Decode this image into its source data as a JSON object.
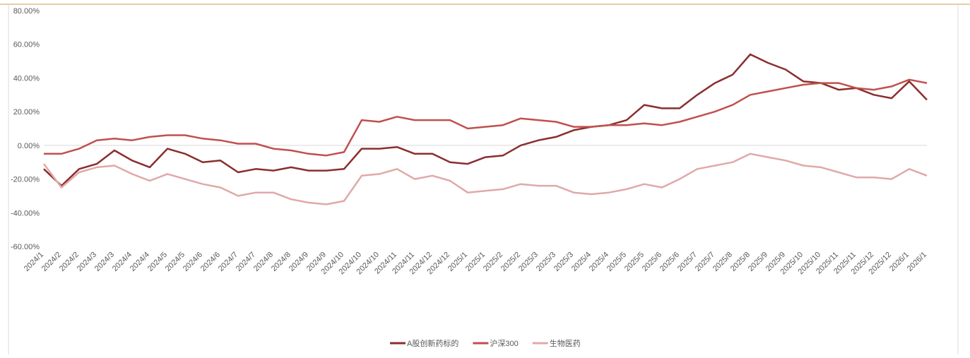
{
  "chart_data": {
    "type": "line",
    "categories": [
      "2024/1",
      "2024/2",
      "2024/2",
      "2024/3",
      "2024/3",
      "2024/4",
      "2024/4",
      "2024/5",
      "2024/5",
      "2024/6",
      "2024/6",
      "2024/7",
      "2024/7",
      "2024/8",
      "2024/8",
      "2024/9",
      "2024/9",
      "2024/10",
      "2024/10",
      "2024/10",
      "2024/11",
      "2024/11",
      "2024/12",
      "2024/12",
      "2025/1",
      "2025/1",
      "2025/2",
      "2025/2",
      "2025/3",
      "2025/3",
      "2025/3",
      "2025/4",
      "2025/4",
      "2025/5",
      "2025/5",
      "2025/6",
      "2025/6",
      "2025/7",
      "2025/7",
      "2025/8",
      "2025/8",
      "2025/9",
      "2025/9",
      "2025/10",
      "2025/10",
      "2025/11",
      "2025/11",
      "2025/12",
      "2025/12",
      "2026/1",
      "2026/1"
    ],
    "series": [
      {
        "name": "A股创新药标的",
        "color": "#8b2e2e",
        "values": [
          -14,
          -24,
          -14,
          -11,
          -3,
          -9,
          -13,
          -2,
          -5,
          -10,
          -9,
          -16,
          -14,
          -15,
          -13,
          -15,
          -15,
          -14,
          -2,
          -2,
          -1,
          -5,
          -5,
          -10,
          -11,
          -7,
          -6,
          0,
          3,
          5,
          9,
          11,
          12,
          15,
          24,
          22,
          22,
          30,
          37,
          42,
          54,
          49,
          45,
          38,
          37,
          33,
          34,
          30,
          28,
          38,
          27
        ]
      },
      {
        "name": "沪深300",
        "color": "#c0504d",
        "values": [
          -5,
          -5,
          -2,
          3,
          4,
          3,
          5,
          6,
          6,
          4,
          3,
          1,
          1,
          -2,
          -3,
          -5,
          -6,
          -4,
          15,
          14,
          17,
          15,
          15,
          15,
          10,
          11,
          12,
          16,
          15,
          14,
          11,
          11,
          12,
          12,
          13,
          12,
          14,
          17,
          20,
          24,
          30,
          32,
          34,
          36,
          37,
          37,
          34,
          33,
          35,
          39,
          37
        ]
      },
      {
        "name": "生物医药",
        "color": "#e0a9a8",
        "values": [
          -11,
          -25,
          -16,
          -13,
          -12,
          -17,
          -21,
          -17,
          -20,
          -23,
          -25,
          -30,
          -28,
          -28,
          -32,
          -34,
          -35,
          -33,
          -18,
          -17,
          -14,
          -20,
          -18,
          -21,
          -28,
          -27,
          -26,
          -23,
          -24,
          -24,
          -28,
          -29,
          -28,
          -26,
          -23,
          -25,
          -20,
          -14,
          -12,
          -10,
          -5,
          -7,
          -9,
          -12,
          -13,
          -16,
          -19,
          -19,
          -20,
          -14,
          -18
        ]
      }
    ],
    "ylim": [
      -60,
      80
    ],
    "yticks": [
      {
        "value": -60,
        "label": "-60.00%"
      },
      {
        "value": -40,
        "label": "-40.00%"
      },
      {
        "value": -20,
        "label": "-20.00%"
      },
      {
        "value": 0,
        "label": "0.00%"
      },
      {
        "value": 20,
        "label": "20.00%"
      },
      {
        "value": 40,
        "label": "40.00%"
      },
      {
        "value": 60,
        "label": "60.00%"
      },
      {
        "value": 80,
        "label": "80.00%"
      }
    ]
  }
}
